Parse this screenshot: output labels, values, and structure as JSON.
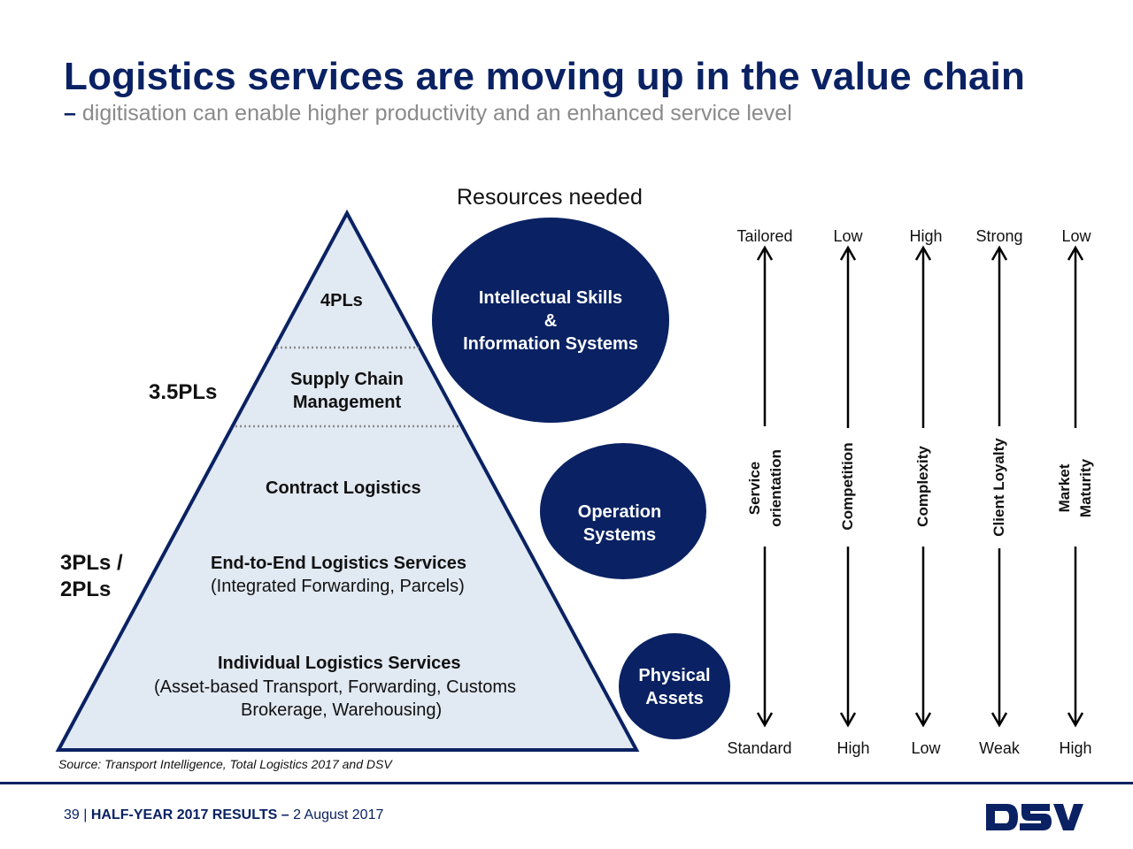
{
  "title": "Logistics services are moving up in the value chain",
  "subtitle_dash": "–",
  "subtitle": "digitisation can enable higher productivity and an enhanced service level",
  "resources_label": "Resources needed",
  "pyramid": {
    "tier_4pl": "4PLs",
    "scm_line1": "Supply Chain",
    "scm_line2": "Management",
    "contract": "Contract Logistics",
    "e2e": "End-to-End Logistics Services",
    "e2e_sub": "(Integrated Forwarding, Parcels)",
    "individual": "Individual Logistics Services",
    "individual_sub1": "(Asset-based Transport, Forwarding, Customs",
    "individual_sub2": "Brokerage, Warehousing)"
  },
  "levels": {
    "l35": "3.5PLs",
    "l3_line1": "3PLs /",
    "l3_line2": "2PLs"
  },
  "circles": {
    "intellectual_1": "Intellectual Skills",
    "intellectual_2": "&",
    "intellectual_3": "Information Systems",
    "operation_1": "Operation",
    "operation_2": "Systems",
    "physical_1": "Physical",
    "physical_2": "Assets"
  },
  "axes": [
    {
      "top": "Tailored",
      "bottom": "Standard",
      "line1": "Service",
      "line2": "orientation"
    },
    {
      "top": "Low",
      "bottom": "High",
      "line1": "Competition",
      "line2": ""
    },
    {
      "top": "High",
      "bottom": "Low",
      "line1": "Complexity",
      "line2": ""
    },
    {
      "top": "Strong",
      "bottom": "Weak",
      "line1": "Client Loyalty",
      "line2": ""
    },
    {
      "top": "Low",
      "bottom": "High",
      "line1": "Market",
      "line2": "Maturity"
    }
  ],
  "source": "Source: Transport Intelligence, Total Logistics 2017 and DSV",
  "footer": {
    "page": "39",
    "sep": "|",
    "bold": "HALF-YEAR 2017 RESULTS –",
    "date": "2 August 2017"
  },
  "logo_text": "DSV",
  "colors": {
    "navy": "#0a2263",
    "pyramid_fill": "#e1e9f2",
    "subtitle_gray": "#8a8a8a"
  }
}
